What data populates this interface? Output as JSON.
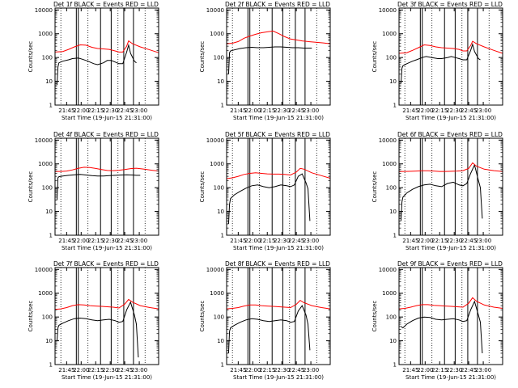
{
  "chart_data": {
    "type": "line",
    "shared_axes": {
      "ylabel": "Counts/sec",
      "xlabel": "Start Time (19-Jun-15 21:31:00)",
      "y_scale": "log",
      "ylim": [
        1,
        12000
      ],
      "yticks": [
        1,
        10,
        100,
        1000,
        10000
      ],
      "ytick_labels": [
        "1",
        "10",
        "100",
        "1000",
        "10000"
      ],
      "xlim_minutes": [
        2,
        109
      ],
      "xticks_minutes": [
        14,
        29,
        44,
        59,
        74,
        89
      ],
      "xtick_labels": [
        "21:45",
        "22:00",
        "22:15",
        "22:30",
        "22:45",
        "23:00"
      ],
      "dotted_vlines_minutes": [
        8,
        36,
        67,
        95
      ],
      "solid_vlines_minutes": [
        24,
        26,
        49,
        60,
        73,
        83
      ]
    },
    "panels": [
      {
        "title": "Det 1f BLACK = Events  RED = LLD",
        "series": [
          {
            "name": "Events",
            "color": "#000000",
            "x": [
              4,
              5,
              6,
              10,
              16,
              20,
              26,
              30,
              36,
              42,
              46,
              52,
              56,
              60,
              64,
              68,
              72,
              76,
              78,
              80,
              84,
              86
            ],
            "y": [
              7,
              40,
              60,
              70,
              80,
              90,
              95,
              85,
              70,
              55,
              50,
              60,
              75,
              75,
              65,
              55,
              55,
              170,
              330,
              150,
              70,
              60
            ]
          },
          {
            "name": "LLD",
            "color": "#ff0000",
            "x": [
              2,
              10,
              16,
              22,
              28,
              34,
              40,
              46,
              52,
              58,
              64,
              68,
              72,
              76,
              78,
              82,
              90,
              100,
              109
            ],
            "y": [
              170,
              180,
              220,
              280,
              340,
              330,
              270,
              240,
              230,
              220,
              190,
              170,
              170,
              300,
              500,
              380,
              280,
              210,
              160
            ]
          }
        ]
      },
      {
        "title": "Det 2f BLACK = Events  RED = LLD",
        "series": [
          {
            "name": "Events",
            "color": "#000000",
            "x": [
              4,
              5,
              6,
              10,
              16,
              22,
              28,
              34,
              40,
              46,
              52,
              58,
              64,
              70,
              76,
              82,
              86,
              90
            ],
            "y": [
              20,
              160,
              190,
              210,
              240,
              260,
              270,
              260,
              260,
              270,
              280,
              280,
              270,
              260,
              260,
              250,
              250,
              250
            ]
          },
          {
            "name": "LLD",
            "color": "#ff0000",
            "x": [
              2,
              8,
              14,
              20,
              26,
              32,
              38,
              44,
              50,
              56,
              62,
              68,
              74,
              80,
              86,
              94,
              102,
              109
            ],
            "y": [
              380,
              400,
              470,
              650,
              800,
              950,
              1100,
              1200,
              1300,
              1000,
              750,
              600,
              550,
              500,
              470,
              440,
              410,
              380
            ]
          }
        ]
      },
      {
        "title": "Det 3f BLACK = Events  RED = LLD",
        "series": [
          {
            "name": "Events",
            "color": "#000000",
            "x": [
              4,
              5,
              6,
              10,
              16,
              20,
              26,
              30,
              36,
              42,
              46,
              52,
              56,
              60,
              64,
              68,
              72,
              76,
              78,
              80,
              84,
              86
            ],
            "y": [
              8,
              35,
              45,
              55,
              70,
              80,
              100,
              110,
              100,
              90,
              90,
              100,
              110,
              100,
              90,
              80,
              80,
              200,
              360,
              180,
              90,
              80
            ]
          },
          {
            "name": "LLD",
            "color": "#ff0000",
            "x": [
              2,
              10,
              16,
              22,
              28,
              34,
              40,
              46,
              52,
              58,
              64,
              68,
              72,
              76,
              78,
              82,
              90,
              100,
              109
            ],
            "y": [
              150,
              160,
              200,
              260,
              340,
              320,
              280,
              260,
              250,
              240,
              220,
              190,
              190,
              320,
              480,
              380,
              280,
              200,
              150
            ]
          }
        ]
      },
      {
        "title": "Det 4f BLACK = Events  RED = LLD",
        "series": [
          {
            "name": "Events",
            "color": "#000000",
            "x": [
              4,
              5,
              6,
              10,
              16,
              22,
              28,
              34,
              40,
              46,
              52,
              58,
              64,
              70,
              76,
              82,
              86,
              90
            ],
            "y": [
              30,
              260,
              290,
              310,
              330,
              350,
              360,
              340,
              320,
              310,
              310,
              320,
              330,
              340,
              350,
              340,
              330,
              330
            ]
          },
          {
            "name": "LLD",
            "color": "#ff0000",
            "x": [
              2,
              8,
              14,
              20,
              26,
              32,
              38,
              44,
              50,
              56,
              62,
              68,
              74,
              80,
              86,
              94,
              102,
              109
            ],
            "y": [
              480,
              480,
              500,
              560,
              650,
              720,
              700,
              640,
              580,
              530,
              520,
              540,
              580,
              630,
              660,
              600,
              540,
              500
            ]
          }
        ]
      },
      {
        "title": "Det 5f BLACK = Events  RED = LLD",
        "series": [
          {
            "name": "Events",
            "color": "#000000",
            "x": [
              4,
              5,
              6,
              10,
              16,
              22,
              28,
              34,
              40,
              46,
              52,
              58,
              64,
              68,
              72,
              76,
              80,
              84,
              86,
              88
            ],
            "y": [
              3,
              20,
              35,
              50,
              70,
              95,
              120,
              130,
              110,
              100,
              110,
              130,
              120,
              110,
              130,
              300,
              380,
              160,
              90,
              4
            ]
          },
          {
            "name": "LLD",
            "color": "#ff0000",
            "x": [
              2,
              8,
              14,
              20,
              26,
              32,
              38,
              44,
              50,
              56,
              62,
              68,
              74,
              78,
              82,
              90,
              100,
              109
            ],
            "y": [
              240,
              260,
              300,
              360,
              400,
              420,
              400,
              380,
              370,
              370,
              360,
              340,
              450,
              650,
              600,
              420,
              320,
              250
            ]
          }
        ]
      },
      {
        "title": "Det 6f BLACK = Events  RED = LLD",
        "series": [
          {
            "name": "Events",
            "color": "#000000",
            "x": [
              4,
              5,
              6,
              10,
              16,
              22,
              28,
              34,
              40,
              46,
              52,
              58,
              64,
              68,
              72,
              76,
              80,
              84,
              86,
              88
            ],
            "y": [
              4,
              25,
              40,
              60,
              85,
              110,
              130,
              140,
              120,
              110,
              150,
              170,
              130,
              120,
              150,
              400,
              900,
              200,
              100,
              5
            ]
          },
          {
            "name": "LLD",
            "color": "#ff0000",
            "x": [
              2,
              8,
              14,
              20,
              26,
              32,
              38,
              44,
              50,
              56,
              62,
              68,
              74,
              78,
              82,
              90,
              100,
              109
            ],
            "y": [
              480,
              480,
              490,
              500,
              510,
              510,
              500,
              480,
              480,
              490,
              500,
              520,
              650,
              1100,
              800,
              600,
              520,
              480
            ]
          }
        ]
      },
      {
        "title": "Det 7f BLACK = Events  RED = LLD",
        "series": [
          {
            "name": "Events",
            "color": "#000000",
            "x": [
              4,
              5,
              6,
              10,
              16,
              22,
              28,
              34,
              40,
              46,
              52,
              58,
              64,
              68,
              72,
              76,
              80,
              84,
              86,
              88
            ],
            "y": [
              10,
              35,
              45,
              55,
              70,
              85,
              90,
              85,
              75,
              70,
              75,
              80,
              70,
              60,
              65,
              200,
              420,
              120,
              50,
              2
            ]
          },
          {
            "name": "LLD",
            "color": "#ff0000",
            "x": [
              2,
              8,
              14,
              20,
              26,
              32,
              38,
              44,
              50,
              56,
              62,
              68,
              74,
              78,
              82,
              90,
              100,
              109
            ],
            "y": [
              210,
              220,
              250,
              300,
              330,
              320,
              300,
              290,
              280,
              270,
              260,
              240,
              350,
              550,
              420,
              300,
              250,
              220
            ]
          }
        ]
      },
      {
        "title": "Det 8f BLACK = Events  RED = LLD",
        "series": [
          {
            "name": "Events",
            "color": "#000000",
            "x": [
              4,
              5,
              6,
              10,
              16,
              22,
              28,
              34,
              40,
              46,
              52,
              58,
              64,
              68,
              72,
              76,
              80,
              84,
              86,
              88
            ],
            "y": [
              3,
              25,
              35,
              45,
              60,
              75,
              85,
              80,
              70,
              65,
              70,
              75,
              70,
              60,
              65,
              180,
              300,
              120,
              50,
              4
            ]
          },
          {
            "name": "LLD",
            "color": "#ff0000",
            "x": [
              2,
              8,
              14,
              20,
              26,
              32,
              38,
              44,
              50,
              56,
              62,
              68,
              74,
              78,
              82,
              90,
              100,
              109
            ],
            "y": [
              220,
              230,
              250,
              290,
              320,
              320,
              300,
              290,
              280,
              270,
              260,
              250,
              340,
              500,
              400,
              300,
              250,
              220
            ]
          }
        ]
      },
      {
        "title": "Det 9f BLACK = Events  RED = LLD",
        "series": [
          {
            "name": "Events",
            "color": "#000000",
            "x": [
              4,
              6,
              10,
              16,
              22,
              28,
              34,
              40,
              46,
              52,
              58,
              64,
              68,
              72,
              76,
              80,
              84,
              86,
              88
            ],
            "y": [
              40,
              35,
              50,
              70,
              90,
              100,
              95,
              80,
              75,
              80,
              85,
              75,
              65,
              70,
              200,
              450,
              120,
              60,
              3
            ]
          },
          {
            "name": "LLD",
            "color": "#ff0000",
            "x": [
              2,
              8,
              14,
              20,
              26,
              32,
              38,
              44,
              50,
              56,
              62,
              68,
              74,
              78,
              82,
              90,
              100,
              109
            ],
            "y": [
              220,
              230,
              260,
              300,
              330,
              330,
              310,
              300,
              290,
              280,
              270,
              260,
              380,
              650,
              460,
              320,
              260,
              230
            ]
          }
        ]
      }
    ]
  }
}
